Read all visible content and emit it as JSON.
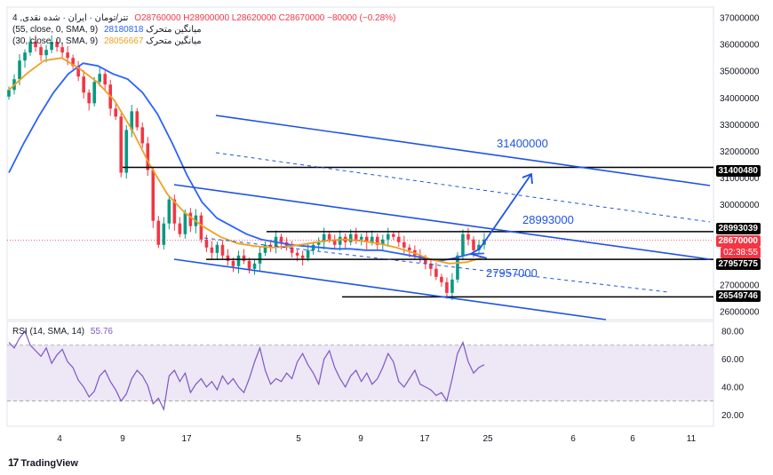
{
  "header": {
    "symbol_line": "4 ,تتر/تومان · ایران · شده نقدی",
    "ohlc": "O28760000 H28900000 L28620000 C28670000 −80000 (−0.28%)",
    "ma55_label": "(55, close, 0, SMA, 9) میانگین متحرک",
    "ma55_value": "28180818",
    "ma30_label": "(30, close, 0, SMA, 9) میانگین متحرک",
    "ma30_value": "28056667",
    "rsi_label": "RSI (14, SMA, 14)",
    "rsi_value": "55.76"
  },
  "price_tags": {
    "last": "28670000",
    "countdown": "02:38:55",
    "levels": [
      "31400480",
      "28993039",
      "27957575",
      "26549746"
    ]
  },
  "annotations": [
    "31400000",
    "28993000",
    "27957000"
  ],
  "brand": "TradingView",
  "colors": {
    "background": "#ffffff",
    "candle_up": "#089981",
    "candle_down": "#f23645",
    "ma55": "#2962ff",
    "ma30": "#f0a020",
    "channel": "#1e53e5",
    "rsi": "#7e57c2",
    "rsi_band": "#ede7f6",
    "level_line": "#000000"
  },
  "chart_data": [
    {
      "type": "candlestick",
      "title": "",
      "x_ticks": [
        "4",
        "9",
        "17",
        "5",
        "9",
        "17",
        "25",
        "6",
        "6",
        "11"
      ],
      "y_ticks": [
        37000000,
        36000000,
        35000000,
        34000000,
        33000000,
        32000000,
        31000000,
        30000000,
        29000000,
        28000000,
        27000000,
        26000000
      ],
      "ylim": [
        25700000,
        37400000
      ],
      "close_series": [
        34300000,
        34700000,
        35400000,
        35700000,
        36100000,
        35900000,
        35600000,
        35800000,
        36100000,
        35900000,
        35700000,
        35500000,
        35200000,
        34800000,
        34200000,
        33800000,
        34600000,
        34900000,
        34500000,
        33600000,
        33300000,
        31200000,
        32800000,
        33500000,
        32900000,
        32300000,
        31300000,
        29400000,
        28500000,
        29300000,
        30200000,
        29300000,
        28900000,
        29700000,
        29200000,
        29600000,
        28700000,
        28400000,
        28200000,
        28500000,
        28100000,
        27900000,
        27700000,
        28100000,
        27900000,
        27600000,
        27800000,
        28200000,
        28500000,
        28400000,
        28800000,
        28600000,
        28400000,
        28200000,
        28100000,
        28000000,
        28300000,
        28500000,
        28600000,
        28900000,
        28700000,
        28500000,
        28800000,
        28600000,
        28900000,
        28700000,
        28800000,
        28600000,
        28800000,
        28500000,
        28700000,
        28900000,
        28800000,
        28600000,
        28400000,
        28300000,
        28100000,
        28000000,
        27800000,
        27600000,
        27300000,
        27100000,
        26700000,
        27200000,
        28100000,
        28900000,
        28700000,
        28300000,
        28500000,
        28700000
      ],
      "ma55_series": [
        31200000,
        32300000,
        33300000,
        34200000,
        34900000,
        35300000,
        35200000,
        34900000,
        34700000,
        34200000,
        33400000,
        32300000,
        31100000,
        30100000,
        29500000,
        29200000,
        28900000,
        28700000,
        28600000,
        28500000,
        28450000,
        28400000,
        28350000,
        28350000,
        28300000,
        28300000,
        28200000,
        28100000,
        28000000,
        27900000,
        28000000,
        28150000,
        28180000
      ],
      "ma30_series": [
        34300000,
        34900000,
        35400000,
        35500000,
        35100000,
        34600000,
        33900000,
        32800000,
        31500000,
        30400000,
        29700000,
        29200000,
        28800000,
        28550000,
        28450000,
        28400000,
        28450000,
        28550000,
        28650000,
        28700000,
        28650000,
        28550000,
        28400000,
        28200000,
        27950000,
        27800000,
        27850000,
        28050000
      ],
      "levels": [
        31400480,
        28993039,
        27957575,
        26549746
      ],
      "current_price": 28670000
    },
    {
      "type": "line",
      "title": "RSI (14, SMA, 14)",
      "y_ticks": [
        80,
        60,
        40,
        20
      ],
      "ylim": [
        12,
        87
      ],
      "bands": [
        70,
        30
      ],
      "values": [
        72,
        68,
        75,
        80,
        70,
        66,
        62,
        68,
        57,
        63,
        67,
        58,
        54,
        45,
        40,
        33,
        37,
        48,
        52,
        44,
        38,
        30,
        35,
        46,
        52,
        48,
        41,
        28,
        32,
        24,
        48,
        52,
        44,
        50,
        36,
        42,
        46,
        40,
        44,
        38,
        48,
        42,
        46,
        40,
        36,
        46,
        58,
        68,
        52,
        42,
        46,
        44,
        50,
        46,
        58,
        64,
        56,
        50,
        42,
        60,
        66,
        54,
        46,
        40,
        48,
        52,
        44,
        50,
        42,
        46,
        54,
        64,
        58,
        44,
        40,
        46,
        52,
        42,
        40,
        38,
        34,
        36,
        30,
        46,
        64,
        72,
        58,
        50,
        54,
        56
      ],
      "last_value": 55.76
    }
  ]
}
